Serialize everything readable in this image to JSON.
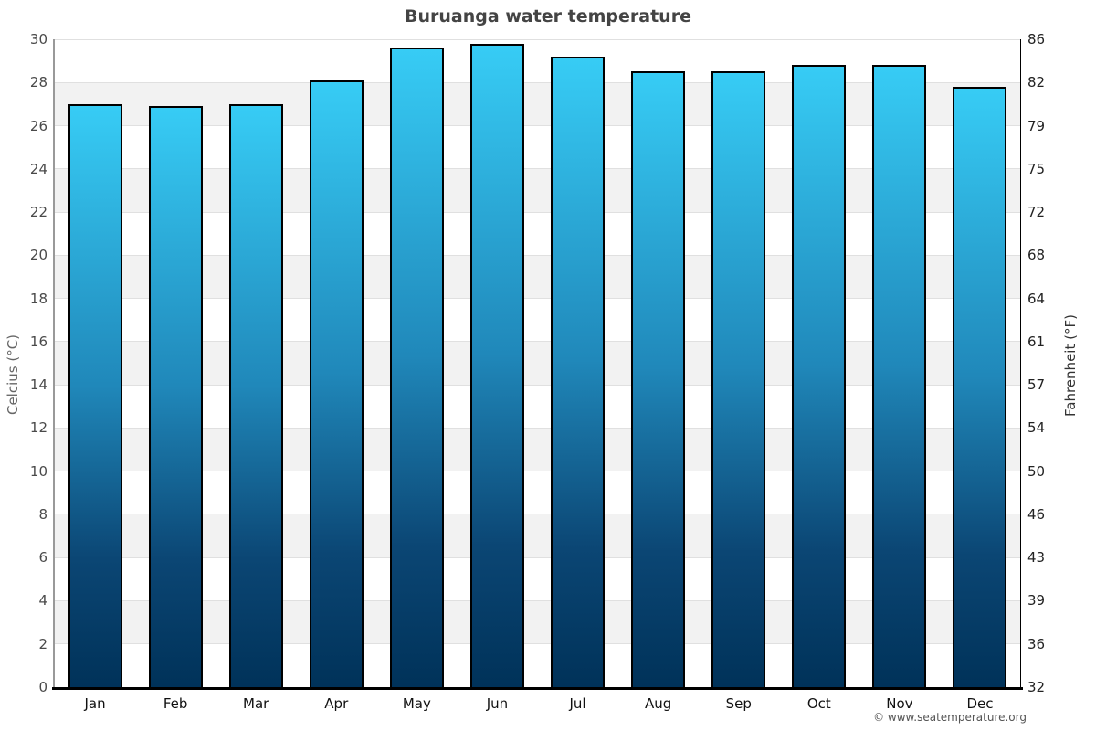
{
  "title": "Buruanga water temperature",
  "attribution": "© www.seatemperature.org",
  "axes": {
    "left_title": "Celcius (°C)",
    "right_title": "Fahrenheit (°F)"
  },
  "chart_data": {
    "type": "bar",
    "title": "Buruanga water temperature",
    "categories": [
      "Jan",
      "Feb",
      "Mar",
      "Apr",
      "May",
      "Jun",
      "Jul",
      "Aug",
      "Sep",
      "Oct",
      "Nov",
      "Dec"
    ],
    "values": [
      27.0,
      26.9,
      27.0,
      28.1,
      29.6,
      29.8,
      29.2,
      28.5,
      28.5,
      28.8,
      28.8,
      27.8
    ],
    "xlabel": "",
    "ylabel": "Celcius (°C)",
    "ylabel_right": "Fahrenheit (°F)",
    "ylim": [
      0,
      30
    ],
    "yticks_celsius": [
      30,
      28,
      26,
      24,
      22,
      20,
      18,
      16,
      14,
      12,
      10,
      8,
      6,
      4,
      2,
      0
    ],
    "yticks_fahrenheit": [
      86,
      82,
      79,
      75,
      72,
      68,
      64,
      61,
      57,
      54,
      50,
      46,
      43,
      39,
      36,
      32
    ],
    "legend": "none",
    "grid": "horizontal gridlines every 2°C with alternating white/gray bands"
  },
  "colors": {
    "bar_gradient_top": "#37ccf5",
    "bar_gradient_mid": "#2088ba",
    "bar_gradient_bottom": "#003259",
    "bar_border": "#000000",
    "band_gray": "#f2f2f2",
    "band_white": "#ffffff",
    "gridline": "#e0e0e0",
    "left_axis_line": "#999999",
    "right_axis_line": "#000000",
    "bottom_axis_line": "#000000",
    "title_text": "#444444"
  }
}
